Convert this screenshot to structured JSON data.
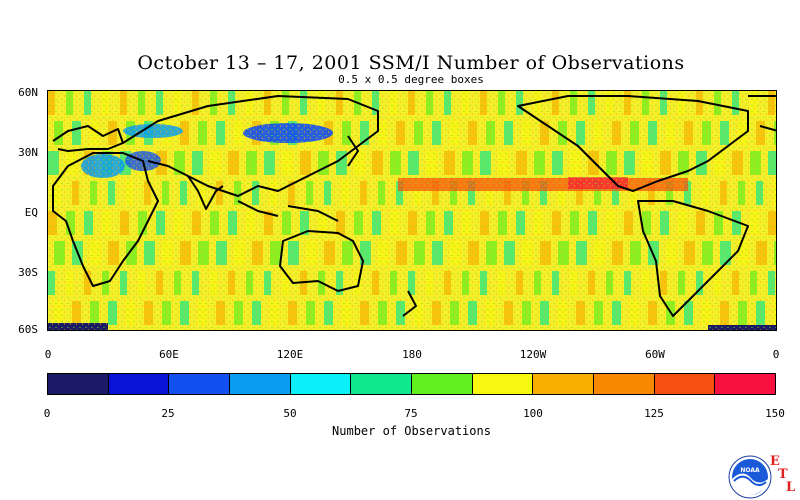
{
  "header": {
    "title": "October 13 – 17, 2001 SSM/I Number of Observations",
    "subtitle": "0.5 x 0.5 degree boxes"
  },
  "map": {
    "lat_labels": [
      "60N",
      "30N",
      "EQ",
      "30S",
      "60S"
    ],
    "lon_labels": [
      "0",
      "60E",
      "120E",
      "180",
      "120W",
      "60W",
      "0"
    ],
    "land_outline_color": "#000000",
    "pattern": "banded swaths of observation counts, higher (orange/red) in tropics band near 15N in the Pacific"
  },
  "colorbar": {
    "title": "Number of Observations",
    "tick_labels": [
      "0",
      "25",
      "50",
      "75",
      "100",
      "125",
      "150"
    ],
    "range": [
      0,
      150
    ],
    "colors": [
      "#1a1a66",
      "#0a14d8",
      "#1450f0",
      "#0a9cf0",
      "#0af0f8",
      "#10e890",
      "#60f020",
      "#f8f810",
      "#f8b000",
      "#f88800",
      "#f85010",
      "#f81040"
    ]
  },
  "logo": {
    "name": "noaa-logo",
    "text": "NOAA",
    "lab_letters": [
      "E",
      "T",
      "L"
    ]
  }
}
